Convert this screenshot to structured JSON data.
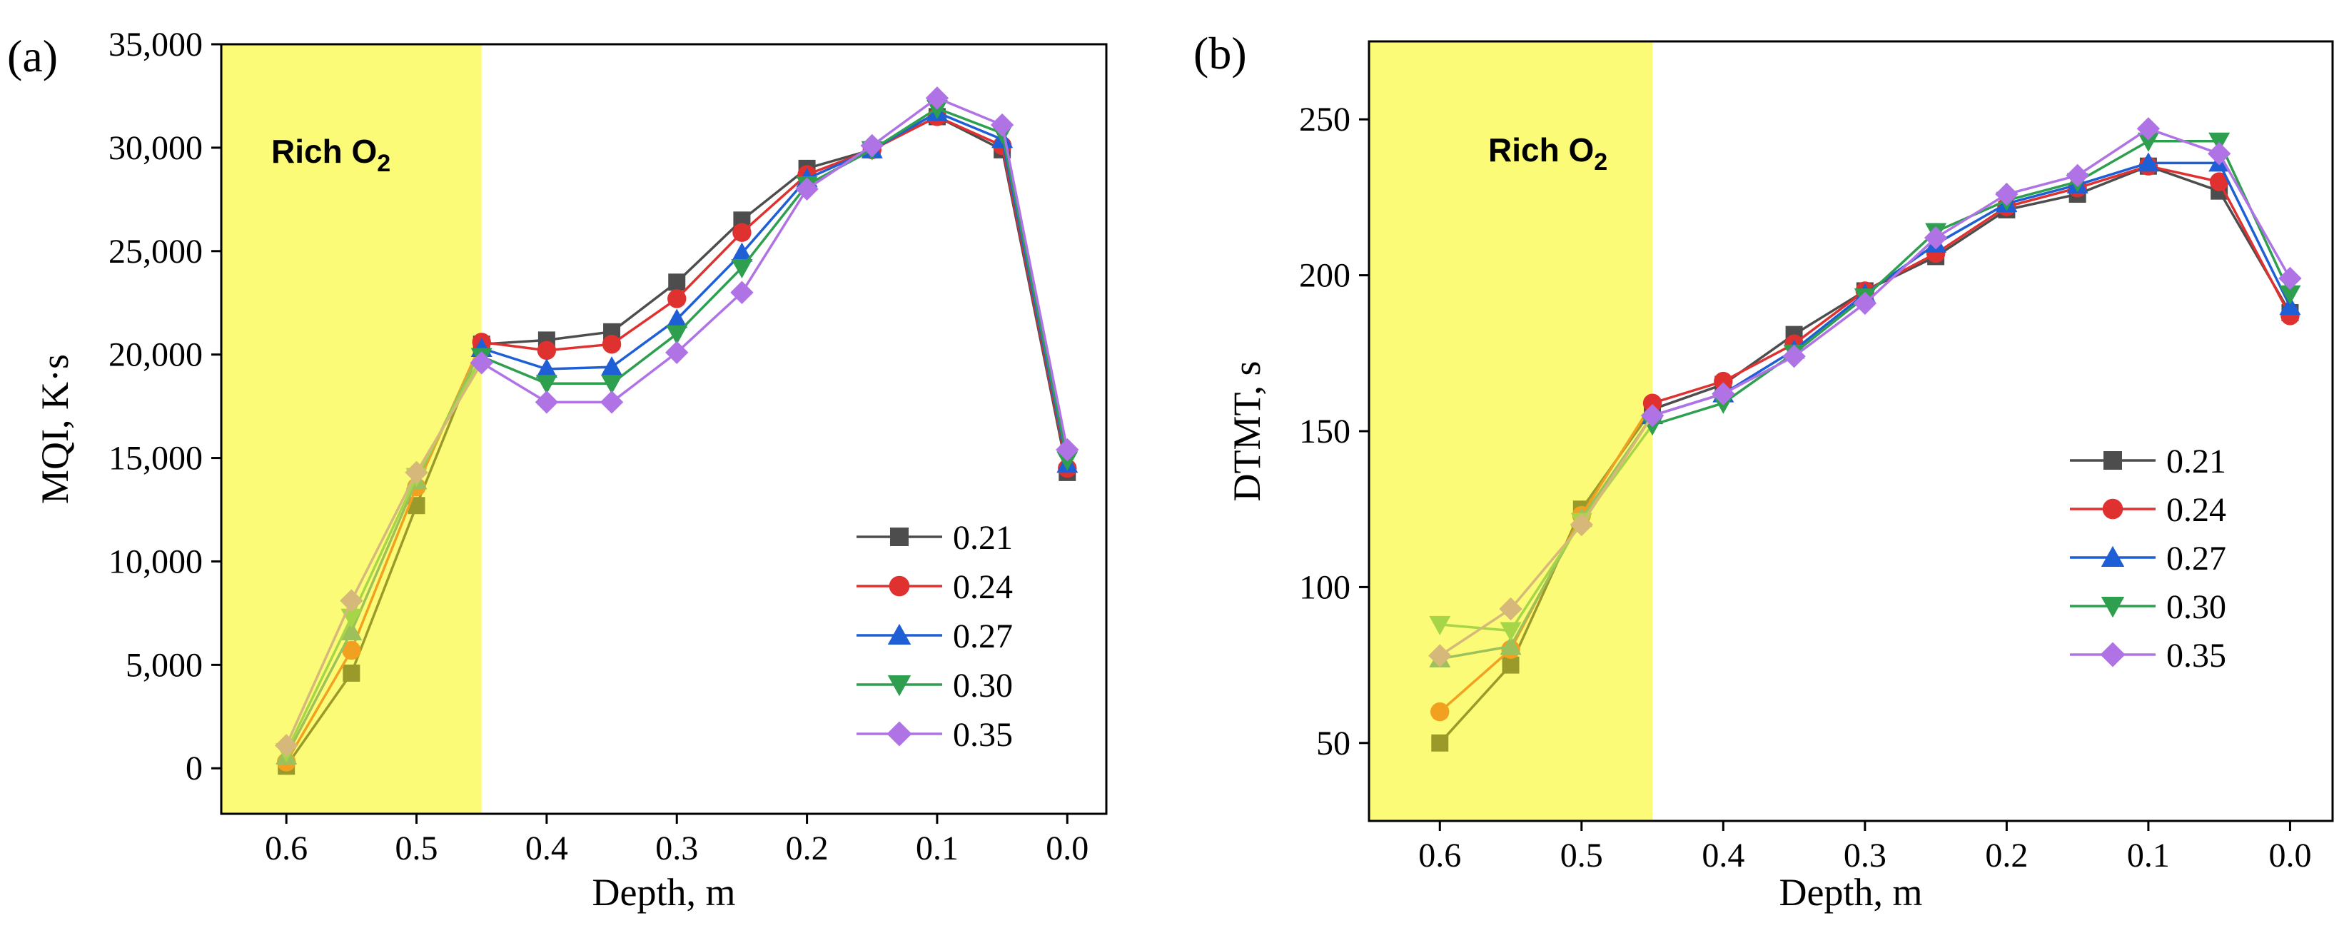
{
  "chart_data": [
    {
      "type": "line",
      "panel_label": "(a)",
      "xlabel": "Depth, m",
      "ylabel": "MQI, K·s",
      "xlim": [
        0.65,
        -0.03
      ],
      "ylim": [
        -2200,
        35000
      ],
      "x_ticks": [
        0.6,
        0.5,
        0.4,
        0.3,
        0.2,
        0.1,
        0.0
      ],
      "x_tick_labels": [
        "0.6",
        "0.5",
        "0.4",
        "0.3",
        "0.2",
        "0.1",
        "0.0"
      ],
      "y_ticks": [
        0,
        5000,
        10000,
        15000,
        20000,
        25000,
        30000,
        35000
      ],
      "y_tick_labels": [
        "0",
        "5,000",
        "10,000",
        "15,000",
        "20,000",
        "25,000",
        "30,000",
        "35,000"
      ],
      "region": {
        "label": "Rich O",
        "subscript": "2",
        "x_from": 0.65,
        "x_to": 0.45,
        "color": "#fbfb78"
      },
      "legend_position": "lower-right",
      "x": [
        0.6,
        0.55,
        0.5,
        0.45,
        0.4,
        0.35,
        0.3,
        0.25,
        0.2,
        0.15,
        0.1,
        0.05,
        0.0
      ],
      "series": [
        {
          "name": "0.21",
          "marker": "square",
          "color": "#4d4d4d",
          "light_color": "#9a9a2a",
          "values": [
            100,
            4600,
            12700,
            20500,
            20700,
            21100,
            23500,
            26500,
            29000,
            29900,
            31500,
            29900,
            14300
          ]
        },
        {
          "name": "0.24",
          "marker": "circle",
          "color": "#e03131",
          "light_color": "#f2a020",
          "values": [
            300,
            5700,
            13600,
            20600,
            20200,
            20500,
            22700,
            25900,
            28700,
            29900,
            31500,
            30100,
            14500
          ]
        },
        {
          "name": "0.27",
          "marker": "triangle-up",
          "color": "#1f5fd6",
          "light_color": "#9cc05a",
          "values": [
            600,
            6600,
            13900,
            20300,
            19300,
            19400,
            21700,
            24900,
            28500,
            29900,
            31700,
            30400,
            14700
          ]
        },
        {
          "name": "0.30",
          "marker": "triangle-down",
          "color": "#2e9e4f",
          "light_color": "#a6d648",
          "values": [
            800,
            7300,
            14100,
            19900,
            18600,
            18600,
            21000,
            24200,
            28200,
            29900,
            31900,
            30700,
            14900
          ]
        },
        {
          "name": "0.35",
          "marker": "diamond",
          "color": "#b073e6",
          "light_color": "#d6b87a",
          "values": [
            1100,
            8100,
            14300,
            19600,
            17700,
            17700,
            20100,
            23000,
            28000,
            30100,
            32400,
            31100,
            15400
          ]
        }
      ]
    },
    {
      "type": "line",
      "panel_label": "(b)",
      "xlabel": "Depth, m",
      "ylabel": "DTMT, s",
      "xlim": [
        0.65,
        -0.03
      ],
      "ylim": [
        25,
        275
      ],
      "x_ticks": [
        0.6,
        0.5,
        0.4,
        0.3,
        0.2,
        0.1,
        0.0
      ],
      "x_tick_labels": [
        "0.6",
        "0.5",
        "0.4",
        "0.3",
        "0.2",
        "0.1",
        "0.0"
      ],
      "y_ticks": [
        50,
        100,
        150,
        200,
        250
      ],
      "y_tick_labels": [
        "50",
        "100",
        "150",
        "200",
        "250"
      ],
      "region": {
        "label": "Rich O",
        "subscript": "2",
        "x_from": 0.65,
        "x_to": 0.45,
        "color": "#fbfb78"
      },
      "legend_position": "middle-right",
      "x": [
        0.6,
        0.55,
        0.5,
        0.45,
        0.4,
        0.35,
        0.3,
        0.25,
        0.2,
        0.15,
        0.1,
        0.05,
        0.0
      ],
      "series": [
        {
          "name": "0.21",
          "marker": "square",
          "color": "#4d4d4d",
          "light_color": "#9a9a2a",
          "values": [
            50,
            75,
            125,
            157,
            165,
            181,
            195,
            206,
            221,
            226,
            235,
            227,
            188
          ]
        },
        {
          "name": "0.24",
          "marker": "circle",
          "color": "#e03131",
          "light_color": "#f2a020",
          "values": [
            60,
            80,
            123,
            159,
            166,
            178,
            195,
            207,
            222,
            228,
            235,
            230,
            187
          ]
        },
        {
          "name": "0.27",
          "marker": "triangle-up",
          "color": "#1f5fd6",
          "light_color": "#9cc05a",
          "values": [
            77,
            81,
            122,
            155,
            162,
            176,
            194,
            210,
            223,
            229,
            236,
            236,
            190
          ]
        },
        {
          "name": "0.30",
          "marker": "triangle-down",
          "color": "#2e9e4f",
          "light_color": "#a6d648",
          "values": [
            88,
            86,
            121,
            152,
            159,
            175,
            193,
            214,
            224,
            230,
            243,
            243,
            194
          ]
        },
        {
          "name": "0.35",
          "marker": "diamond",
          "color": "#b073e6",
          "light_color": "#d6b87a",
          "values": [
            78,
            93,
            120,
            155,
            162,
            174,
            191,
            212,
            226,
            232,
            247,
            239,
            199
          ]
        }
      ]
    }
  ]
}
